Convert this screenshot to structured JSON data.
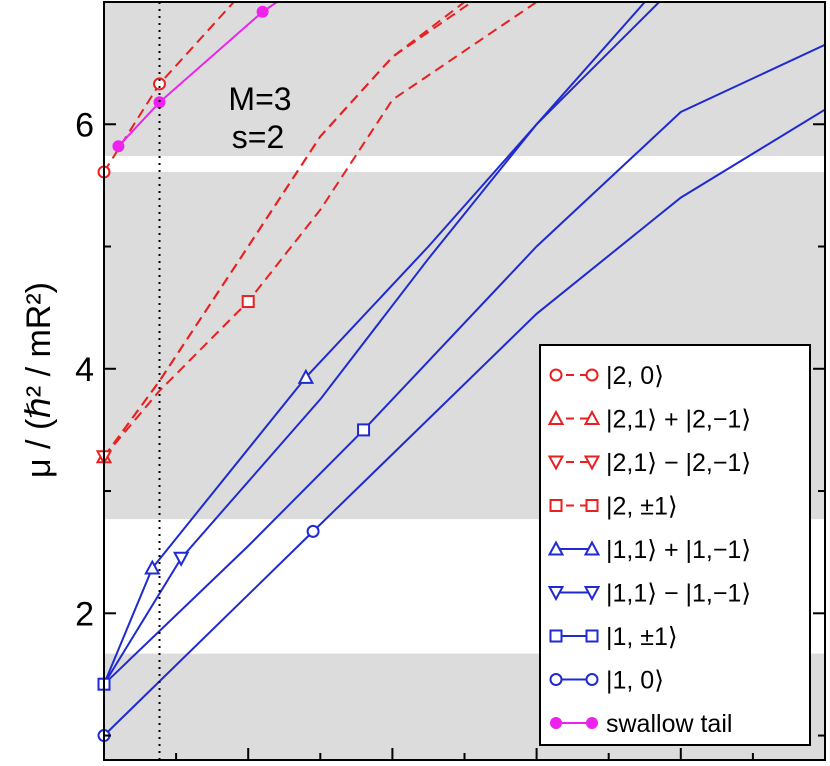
{
  "chart_data": {
    "type": "line",
    "title": "",
    "ylabel": "μ / (ℏ² / mR²)",
    "xlabel": "",
    "xlim": [
      0,
      1
    ],
    "ylim": [
      0.8,
      7.0
    ],
    "yticks": [
      2,
      4,
      6
    ],
    "ytick_labels": [
      "2",
      "4",
      "6"
    ],
    "annotation": {
      "line1": "M=3",
      "line2": "s=2"
    },
    "vertical_dotted_line_x": 0.077,
    "gray_bands": [
      [
        0.8,
        1.67
      ],
      [
        2.77,
        5.61
      ],
      [
        5.74,
        7.0
      ]
    ],
    "legend": {
      "position": "bottom-right",
      "entries": [
        {
          "label": "|2, 0⟩",
          "color": "#e82020",
          "dash": true,
          "marker": "circle"
        },
        {
          "label": "|2,1⟩ + |2,−1⟩",
          "color": "#e82020",
          "dash": true,
          "marker": "triangle-up"
        },
        {
          "label": "|2,1⟩ − |2,−1⟩",
          "color": "#e82020",
          "dash": true,
          "marker": "triangle-down"
        },
        {
          "label": "|2, ±1⟩",
          "color": "#e82020",
          "dash": true,
          "marker": "square"
        },
        {
          "label": "|1,1⟩ + |1,−1⟩",
          "color": "#1f2bd1",
          "dash": false,
          "marker": "triangle-up"
        },
        {
          "label": "|1,1⟩ − |1,−1⟩",
          "color": "#1f2bd1",
          "dash": false,
          "marker": "triangle-down"
        },
        {
          "label": "|1, ±1⟩",
          "color": "#1f2bd1",
          "dash": false,
          "marker": "square"
        },
        {
          "label": "|1, 0⟩",
          "color": "#1f2bd1",
          "dash": false,
          "marker": "circle"
        },
        {
          "label": "swallow tail",
          "color": "#ee22ee",
          "dash": false,
          "marker": "star"
        }
      ]
    },
    "series": [
      {
        "color": "#e82020",
        "dash": true,
        "marker": "circle",
        "points": [
          [
            0,
            5.61
          ],
          [
            0.077,
            6.33
          ],
          [
            0.18,
            7.0
          ]
        ],
        "marked": [
          0,
          1
        ]
      },
      {
        "color": "#e82020",
        "dash": true,
        "marker": "triangle-up",
        "points": [
          [
            0,
            3.28
          ],
          [
            0.077,
            3.9
          ],
          [
            0.2,
            5.0
          ],
          [
            0.3,
            5.9
          ],
          [
            0.4,
            6.55
          ],
          [
            0.5,
            7.0
          ]
        ],
        "marked": [
          0
        ]
      },
      {
        "color": "#e82020",
        "dash": true,
        "marker": "triangle-down",
        "points": [
          [
            0,
            3.28
          ],
          [
            0.077,
            3.9
          ],
          [
            0.2,
            5.0
          ],
          [
            0.3,
            5.9
          ],
          [
            0.4,
            6.55
          ],
          [
            0.51,
            7.0
          ]
        ],
        "marked": [
          0
        ]
      },
      {
        "color": "#e82020",
        "dash": true,
        "marker": "square",
        "points": [
          [
            0,
            3.28
          ],
          [
            0.077,
            3.82
          ],
          [
            0.2,
            4.55
          ],
          [
            0.3,
            5.3
          ],
          [
            0.4,
            6.2
          ],
          [
            0.6,
            7.0
          ]
        ],
        "marked": [
          2
        ]
      },
      {
        "color": "#1f2bd1",
        "dash": false,
        "marker": "triangle-up",
        "points": [
          [
            0,
            1.42
          ],
          [
            0.067,
            2.37
          ],
          [
            0.28,
            3.93
          ],
          [
            0.45,
            5.0
          ],
          [
            0.6,
            6.0
          ],
          [
            0.75,
            7.0
          ]
        ],
        "marked": [
          1,
          2
        ]
      },
      {
        "color": "#1f2bd1",
        "dash": false,
        "marker": "triangle-down",
        "points": [
          [
            0,
            1.42
          ],
          [
            0.107,
            2.45
          ],
          [
            0.3,
            3.75
          ],
          [
            0.45,
            4.9
          ],
          [
            0.6,
            6.0
          ],
          [
            0.77,
            7.0
          ]
        ],
        "marked": [
          1
        ]
      },
      {
        "color": "#1f2bd1",
        "dash": false,
        "marker": "square",
        "points": [
          [
            0,
            1.42
          ],
          [
            0.2,
            2.55
          ],
          [
            0.36,
            3.5
          ],
          [
            0.6,
            5.0
          ],
          [
            0.8,
            6.1
          ],
          [
            1.0,
            6.65
          ]
        ],
        "marked": [
          0,
          2
        ]
      },
      {
        "color": "#1f2bd1",
        "dash": false,
        "marker": "circle",
        "points": [
          [
            0,
            1.0
          ],
          [
            0.29,
            2.67
          ],
          [
            0.6,
            4.45
          ],
          [
            0.8,
            5.4
          ],
          [
            1.0,
            6.12
          ]
        ],
        "marked": [
          0,
          1
        ]
      },
      {
        "color": "#ee22ee",
        "dash": false,
        "marker": "star",
        "points": [
          [
            0.02,
            5.82
          ],
          [
            0.077,
            6.18
          ],
          [
            0.22,
            6.92
          ],
          [
            0.24,
            7.0
          ]
        ],
        "marked": [
          0,
          1,
          2
        ]
      }
    ]
  }
}
